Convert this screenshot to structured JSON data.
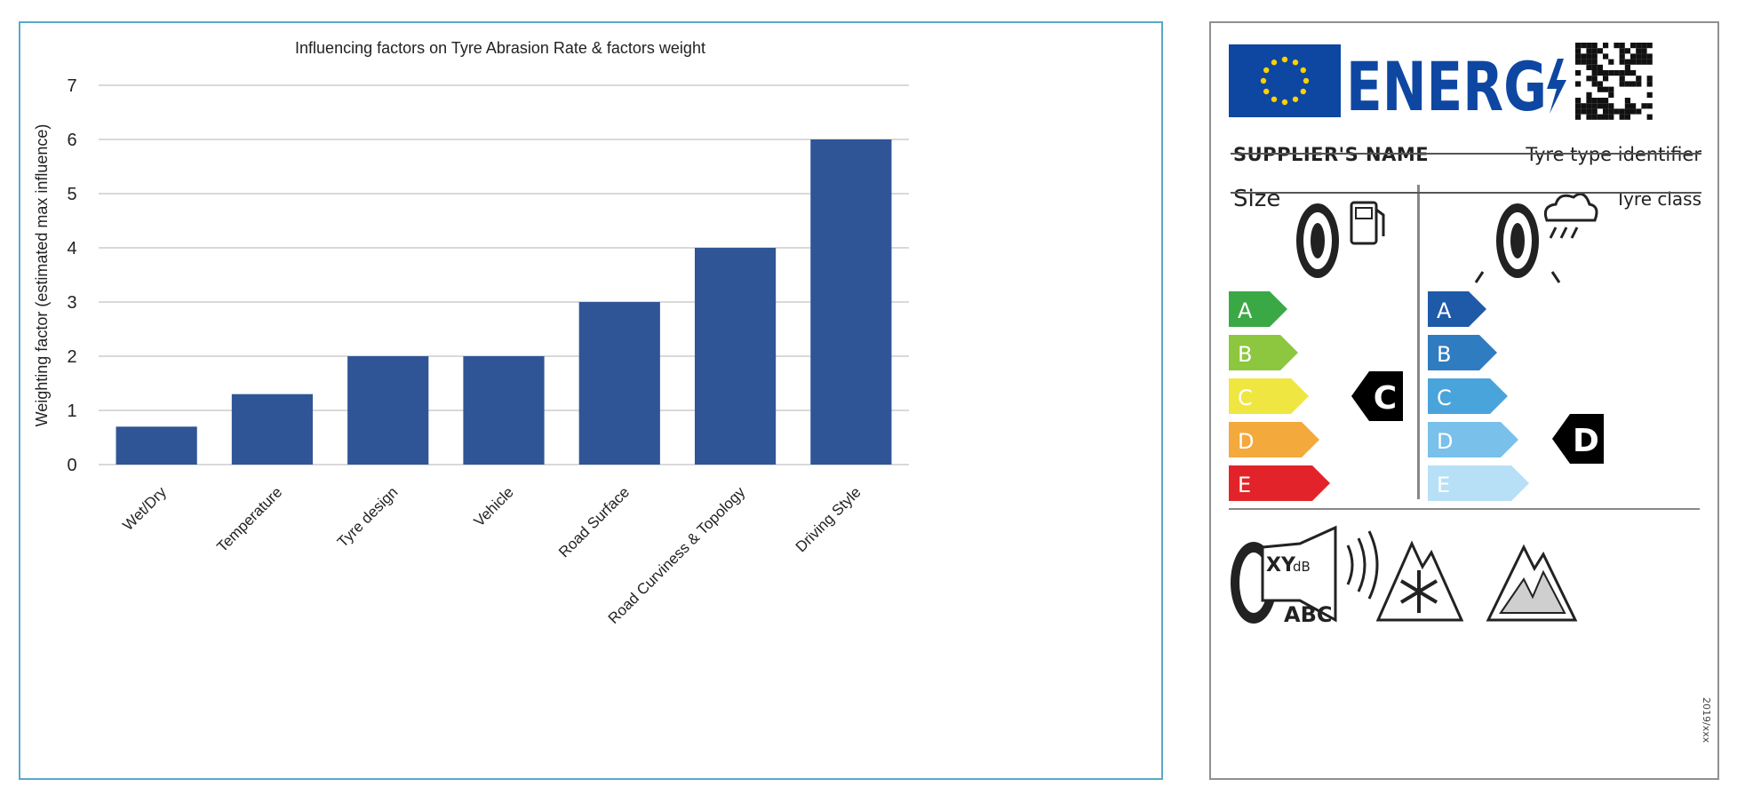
{
  "chart_data": {
    "type": "bar",
    "title": "Influencing factors on Tyre Abrasion Rate & factors weight",
    "xlabel": "",
    "ylabel": "Weighting factor (estimated max influence)",
    "categories": [
      "Wet/Dry",
      "Temperature",
      "Tyre design",
      "Vehicle",
      "Road Surface",
      "Road Curviness & Topology",
      "Driving Style"
    ],
    "values": [
      0.7,
      1.3,
      2,
      2,
      3,
      4,
      6
    ],
    "ylim": [
      0,
      7
    ],
    "yticks": [
      "0",
      "1",
      "2",
      "3",
      "4",
      "5",
      "6",
      "7"
    ],
    "bar_color": "#2f5597",
    "grid": true,
    "legend": "none"
  },
  "energy_label": {
    "logo_text": "ENERG",
    "supplier_name": "SUPPLIER'S NAME",
    "tyre_type_identifier": "Tyre type identifier",
    "size": "Size",
    "tyre_class": "Tyre class",
    "fuel_classes": [
      "A",
      "B",
      "C",
      "D",
      "E"
    ],
    "fuel_rating": "C",
    "wet_classes": [
      "A",
      "B",
      "C",
      "D",
      "E"
    ],
    "wet_rating": "D",
    "noise_value": "XY",
    "noise_unit": "dB",
    "noise_classes": "ABC",
    "regulation": "2019/xxx",
    "colors": {
      "eu_blue": "#0e47a1",
      "eu_star": "#ffd200",
      "fuel": [
        "#3aa845",
        "#8dc63f",
        "#f0e641",
        "#f4a93c",
        "#e2242a"
      ],
      "wet": [
        "#1f5aa8",
        "#2f7cc1",
        "#4aa4dc",
        "#79c0ea",
        "#b7e0f7"
      ]
    }
  }
}
